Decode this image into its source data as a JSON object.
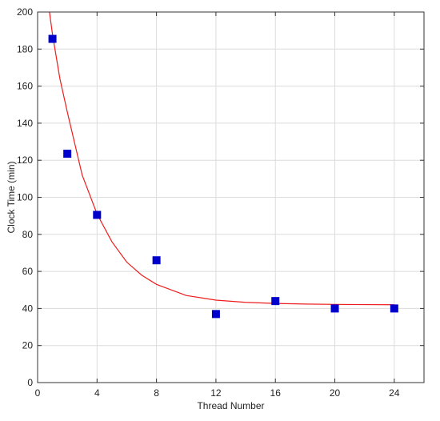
{
  "chart_data": {
    "type": "scatter",
    "xlabel": "Thread Number",
    "ylabel": "Clock Time (min)",
    "xlim": [
      0,
      26
    ],
    "ylim": [
      0,
      200
    ],
    "xticks": [
      0,
      4,
      8,
      12,
      16,
      20,
      24
    ],
    "yticks": [
      0,
      20,
      40,
      60,
      80,
      100,
      120,
      140,
      160,
      180,
      200
    ],
    "grid": true,
    "series": [
      {
        "type": "scatter",
        "marker": "square",
        "color": "#0000cc",
        "x": [
          1,
          2,
          4,
          8,
          12,
          16,
          20,
          24
        ],
        "y": [
          185.5,
          123.5,
          90.5,
          66,
          37,
          44,
          40,
          40
        ]
      },
      {
        "type": "line",
        "color": "#ee1c1c",
        "x": [
          0.8,
          1,
          1.5,
          2,
          3,
          4,
          5,
          6,
          7,
          8,
          10,
          12,
          14,
          16,
          18,
          20,
          22,
          24
        ],
        "y": [
          200,
          188,
          164,
          146,
          112,
          91,
          76,
          65,
          58,
          53,
          47,
          44.5,
          43.3,
          42.7,
          42.4,
          42.2,
          42.1,
          42.0
        ]
      }
    ]
  }
}
